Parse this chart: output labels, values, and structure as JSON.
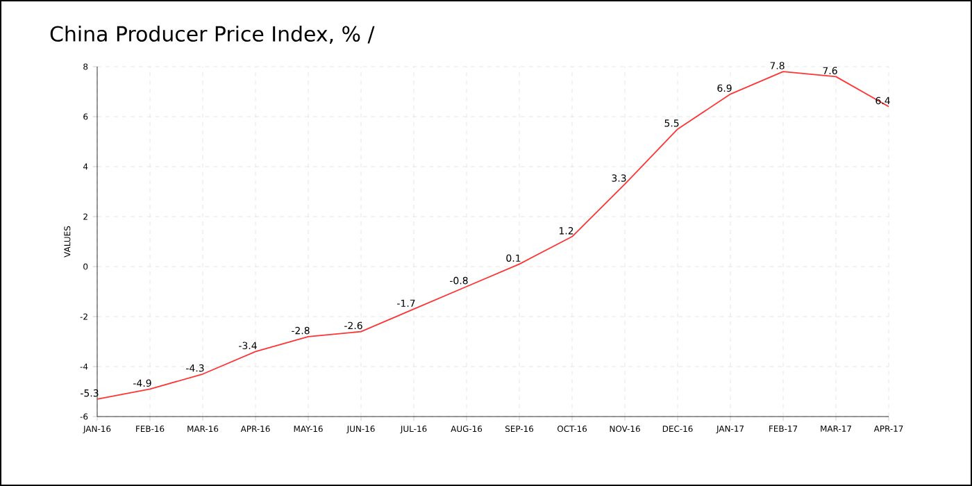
{
  "chart_data": {
    "type": "line",
    "title": "China Producer Price Index, % /",
    "ylabel": "VALUES",
    "categories": [
      "JAN-16",
      "FEB-16",
      "MAR-16",
      "APR-16",
      "MAY-16",
      "JUN-16",
      "JUL-16",
      "AUG-16",
      "SEP-16",
      "OCT-16",
      "NOV-16",
      "DEC-16",
      "JAN-17",
      "FEB-17",
      "MAR-17",
      "APR-17"
    ],
    "series": [
      {
        "color": "#ff3333",
        "values": [
          -5.3,
          -4.9,
          -4.3,
          -3.4,
          -2.8,
          -2.6,
          -1.7,
          -0.8,
          0.1,
          1.2,
          3.3,
          5.5,
          6.9,
          7.8,
          7.6,
          6.4
        ]
      }
    ],
    "ylim": [
      -6,
      8
    ],
    "yticks": [
      -6,
      -4,
      -2,
      0,
      2,
      4,
      6,
      8
    ],
    "grid": true,
    "data_labels": true,
    "marker": "none",
    "line_style": "solid"
  }
}
